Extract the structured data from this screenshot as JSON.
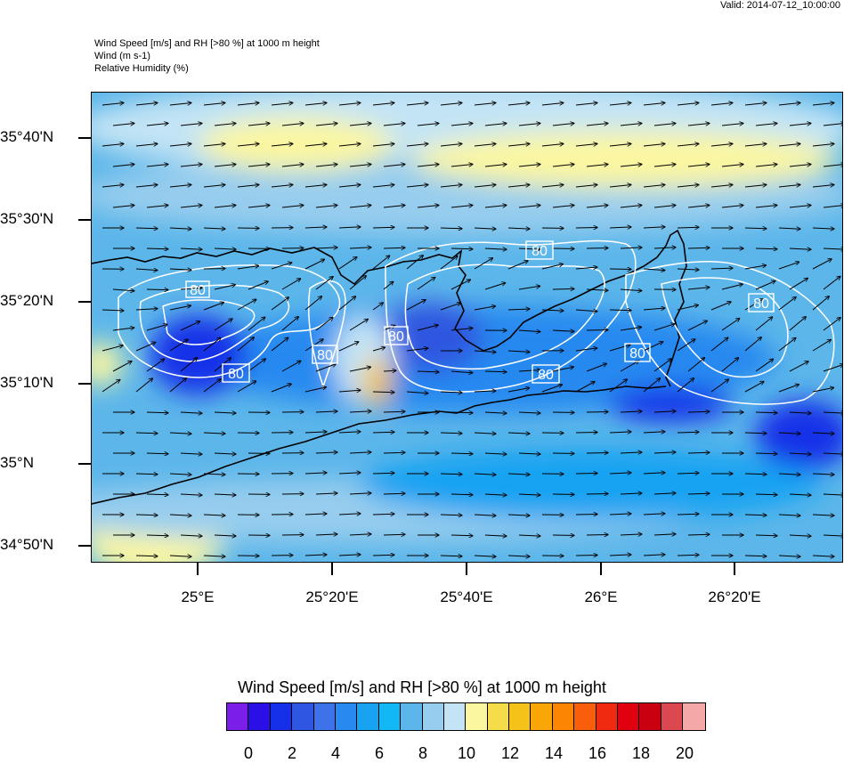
{
  "valid_time": "Valid: 2014-07-12_10:00:00",
  "header": {
    "line1": "Wind Speed [m/s] and RH [>80 %] at 1000 m height",
    "line2": "Wind   (m s-1)",
    "line3": "Relative Humidity   (%)"
  },
  "axes": {
    "y_labels": [
      "35°40'N",
      "35°30'N",
      "35°20'N",
      "35°10'N",
      "35°N",
      "34°50'N"
    ],
    "x_labels": [
      "25°E",
      "25°20'E",
      "25°40'E",
      "26°E",
      "26°20'E"
    ]
  },
  "contour_labels": [
    "80",
    "80",
    "80",
    "80",
    "80",
    "80",
    "80",
    "80"
  ],
  "colorbar": {
    "title": "Wind Speed [m/s] and RH [>80 %] at 1000 m height",
    "labels": [
      "0",
      "2",
      "4",
      "6",
      "8",
      "10",
      "12",
      "14",
      "16",
      "18",
      "20"
    ],
    "colors": [
      "#7a1ee8",
      "#2a10e6",
      "#1530e8",
      "#2f56e0",
      "#3d72ea",
      "#2889f0",
      "#18a3f2",
      "#12b8f3",
      "#5cb6ea",
      "#97cdee",
      "#c3e4f5",
      "#fbf7a0",
      "#f5dc4a",
      "#f5c21a",
      "#f9a607",
      "#fc8504",
      "#f95f0a",
      "#f02a10",
      "#e00010",
      "#c80010",
      "#dc4850",
      "#f4a8a8"
    ]
  },
  "field_colors": {
    "base": "#5cb6ea",
    "light": "#97cdee",
    "pale": "#c3e4f5",
    "yellow": "#fbf7a0",
    "mid": "#2889f0",
    "deep": "#1530e8",
    "dark": "#2f56e0",
    "orange": "#f5c21a",
    "bright": "#18a3f2"
  }
}
